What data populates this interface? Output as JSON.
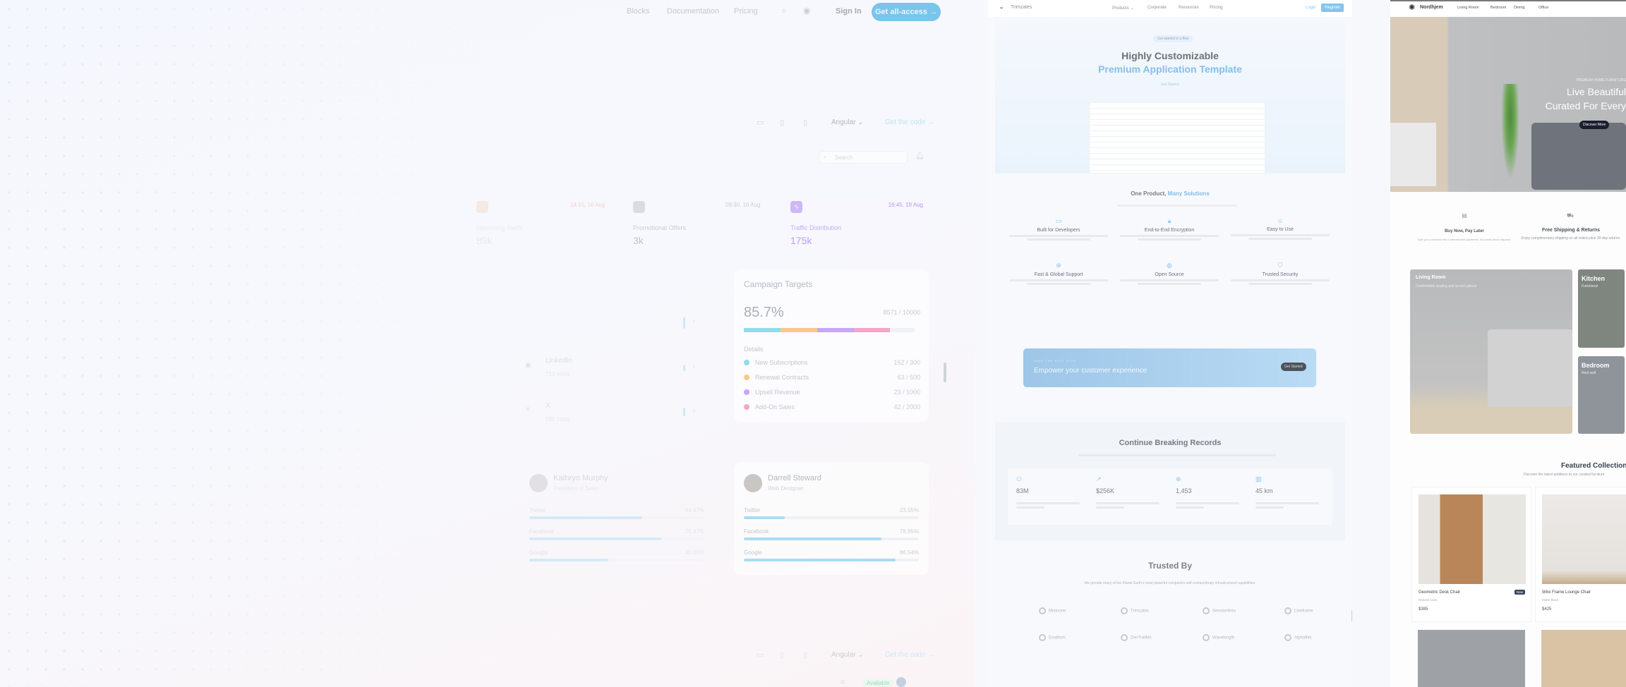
{
  "nav": {
    "items": [
      "Blocks",
      "Documentation",
      "Pricing"
    ],
    "sign_in": "Sign In",
    "cta": "Get all-access →"
  },
  "toolbar": {
    "framework": "Angular ⌄",
    "get_code": "Get the code →"
  },
  "dashboard": {
    "search_placeholder": "Search",
    "stats": [
      {
        "label": "Upcoming Alerts",
        "value": "89k",
        "time": "14:15, 16 Aug",
        "color": "#f6b88a"
      },
      {
        "label": "Promotional Offers",
        "value": "3k",
        "time": "09:30, 16 Aug",
        "color": "#9aa3b2"
      },
      {
        "label": "Traffic Distribution",
        "value": "175k",
        "time": "16:45, 19 Aug",
        "color": "#a78bfa"
      }
    ],
    "social": [
      {
        "name": "LinkedIn",
        "visits": "713 Visits"
      },
      {
        "name": "X",
        "visits": "595 Visits"
      }
    ],
    "campaign": {
      "title": "Campaign Targets",
      "percent": "85.7%",
      "total": "8571 / 10000",
      "details_label": "Details",
      "items": [
        {
          "label": "New Subscriptions",
          "value": "152 / 300",
          "color": "#8fdde9"
        },
        {
          "label": "Renewal Contracts",
          "value": "63 / 500",
          "color": "#f7c98a"
        },
        {
          "label": "Upsell Revenue",
          "value": "23 / 1000",
          "color": "#c4a7f5"
        },
        {
          "label": "Add-On Sales",
          "value": "42 / 2000",
          "color": "#f3a6c8"
        }
      ]
    },
    "profiles": [
      {
        "name": "Kathryn Murphy",
        "role": "President of Sales",
        "rows": [
          {
            "label": "Twitter",
            "value": "64.47%",
            "fill": 64.47
          },
          {
            "label": "Facebook",
            "value": "75.47%",
            "fill": 75.47
          },
          {
            "label": "Google",
            "value": "45.00%",
            "fill": 45
          }
        ]
      },
      {
        "name": "Darrell Steward",
        "role": "Web Designer",
        "rows": [
          {
            "label": "Twitter",
            "value": "23.55%",
            "fill": 23.55
          },
          {
            "label": "Facebook",
            "value": "78.65%",
            "fill": 78.65
          },
          {
            "label": "Google",
            "value": "86.54%",
            "fill": 86.54
          }
        ]
      }
    ],
    "status": "Available"
  },
  "saas": {
    "brand": "Trimzales",
    "nav": [
      "Products ⌄",
      "Corporate",
      "Resources",
      "Pricing"
    ],
    "login": "Login",
    "register": "Register",
    "badge": "Get started in a flow",
    "title1": "Highly Customizable",
    "title2": "Premium Application Template",
    "get_started": "Get Started",
    "section_title_a": "One Product, ",
    "section_title_b": "Many Solutions",
    "features": [
      {
        "icon": "monitor",
        "title": "Built for Developers"
      },
      {
        "icon": "lock",
        "title": "End-to-End Encryption"
      },
      {
        "icon": "smile",
        "title": "Easy to Use"
      },
      {
        "icon": "globe",
        "title": "Fast & Global Support"
      },
      {
        "icon": "github",
        "title": "Open Source"
      },
      {
        "icon": "shield",
        "title": "Trusted Security"
      }
    ],
    "cta_kicker": "TAKE THE NEXT STEP",
    "cta_text": "Empower your customer experience",
    "cta_button": "Get Started",
    "records_title": "Continue Breaking Records",
    "records": [
      {
        "icon": "users",
        "value": "83M"
      },
      {
        "icon": "chart",
        "value": "$256K"
      },
      {
        "icon": "globe",
        "value": "1,453"
      },
      {
        "icon": "map",
        "value": "45 km"
      }
    ],
    "trusted_title": "Trusted By",
    "trusted_sub": "We provide many of the Planet Earth's most powerful companies with extraordinary infrastructural capabilities.",
    "logos": [
      "Mistoone",
      "Trimzales",
      "Sessionlinks",
      "Lineframe",
      "Enabtom",
      "ZenTrailMs",
      "Wavelength",
      "Alphafies"
    ]
  },
  "shop": {
    "brand": "Nordhjem",
    "nav": [
      "Living Room",
      "Bedroom",
      "Dining",
      "Office"
    ],
    "hero_kicker": "PREMIUM HOME FURNITURE",
    "hero_title1": "Live Beautiful",
    "hero_title2": "Curated For Every",
    "hero_button": "Discover More",
    "perks": [
      {
        "title": "Buy Now, Pay Later",
        "text": "Split your purchase into 4 interest-free payments. No credit check required."
      },
      {
        "title": "Free Shipping & Returns",
        "text": "Enjoy complimentary shipping on all orders plus 30-day returns."
      }
    ],
    "rooms": [
      {
        "title": "Living Room",
        "text": "Comfortable seating and accent pieces"
      },
      {
        "title": "Kitchen",
        "text": "Functional"
      },
      {
        "title": "Bedroom",
        "text": "Rest well"
      }
    ],
    "featured_title": "Featured Collection",
    "featured_sub": "Discover the latest additions to our curated furniture",
    "products": [
      {
        "name": "Geometric Desk Chair",
        "variant": "Natural Cane",
        "price": "$385",
        "badge": "New"
      },
      {
        "name": "Wire Frame Lounge Chair",
        "variant": "Matte Black",
        "price": "$425"
      }
    ]
  }
}
